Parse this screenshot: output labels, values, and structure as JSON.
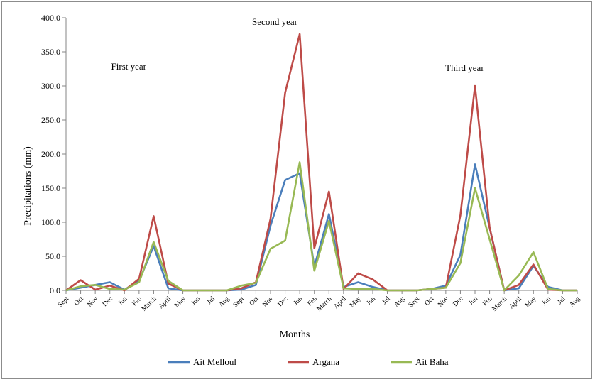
{
  "chart_data": {
    "type": "line",
    "xlabel": "Months",
    "ylabel": "Precipitations (mm)",
    "ylim": [
      0,
      400
    ],
    "yticks": [
      "0.0",
      "50.0",
      "100.0",
      "150.0",
      "200.0",
      "250.0",
      "300.0",
      "350.0",
      "400.0"
    ],
    "grid": false,
    "legend": "bottom",
    "categories": [
      "Sept",
      "Oct",
      "Nov",
      "Dec",
      "Jun",
      "Feb",
      "March",
      "April",
      "May",
      "Jun",
      "Jul",
      "Aug",
      "Sept",
      "Oct",
      "Nov",
      "Dec",
      "Jun",
      "Feb",
      "March",
      "April",
      "May",
      "Jun",
      "Jul",
      "Aug",
      "Sept",
      "Oct",
      "Nov",
      "Dec",
      "Jun",
      "Feb",
      "March",
      "April",
      "May",
      "Jun",
      "Jul",
      "Aug"
    ],
    "annotations": [
      {
        "text": "First year",
        "at_index": 4
      },
      {
        "text": "Second year",
        "at_index": 14
      },
      {
        "text": "Third year",
        "at_index": 27
      }
    ],
    "series": [
      {
        "name": "Ait Melloul",
        "color": "#4a7ebb",
        "values": [
          0,
          4,
          8,
          12,
          1,
          14,
          65,
          3,
          0,
          0,
          0,
          0,
          1,
          8,
          95,
          162,
          172,
          35,
          112,
          5,
          12,
          5,
          0,
          0,
          0,
          2,
          7,
          52,
          185,
          92,
          0,
          3,
          36,
          5,
          0,
          0
        ]
      },
      {
        "name": "Argana",
        "color": "#be4b48",
        "values": [
          0,
          15,
          1,
          7,
          0,
          17,
          109,
          10,
          0,
          0,
          0,
          0,
          3,
          12,
          105,
          290,
          376,
          62,
          145,
          2,
          25,
          16,
          0,
          0,
          0,
          2,
          4,
          110,
          300,
          92,
          0,
          8,
          38,
          1,
          0,
          0
        ]
      },
      {
        "name": "Ait Baha",
        "color": "#98b954",
        "values": [
          0,
          6,
          8,
          2,
          1,
          12,
          71,
          14,
          0,
          0,
          0,
          0,
          7,
          11,
          61,
          73,
          188,
          29,
          102,
          3,
          2,
          2,
          0,
          0,
          0,
          2,
          4,
          40,
          150,
          75,
          0,
          22,
          56,
          2,
          0,
          0
        ]
      }
    ]
  }
}
